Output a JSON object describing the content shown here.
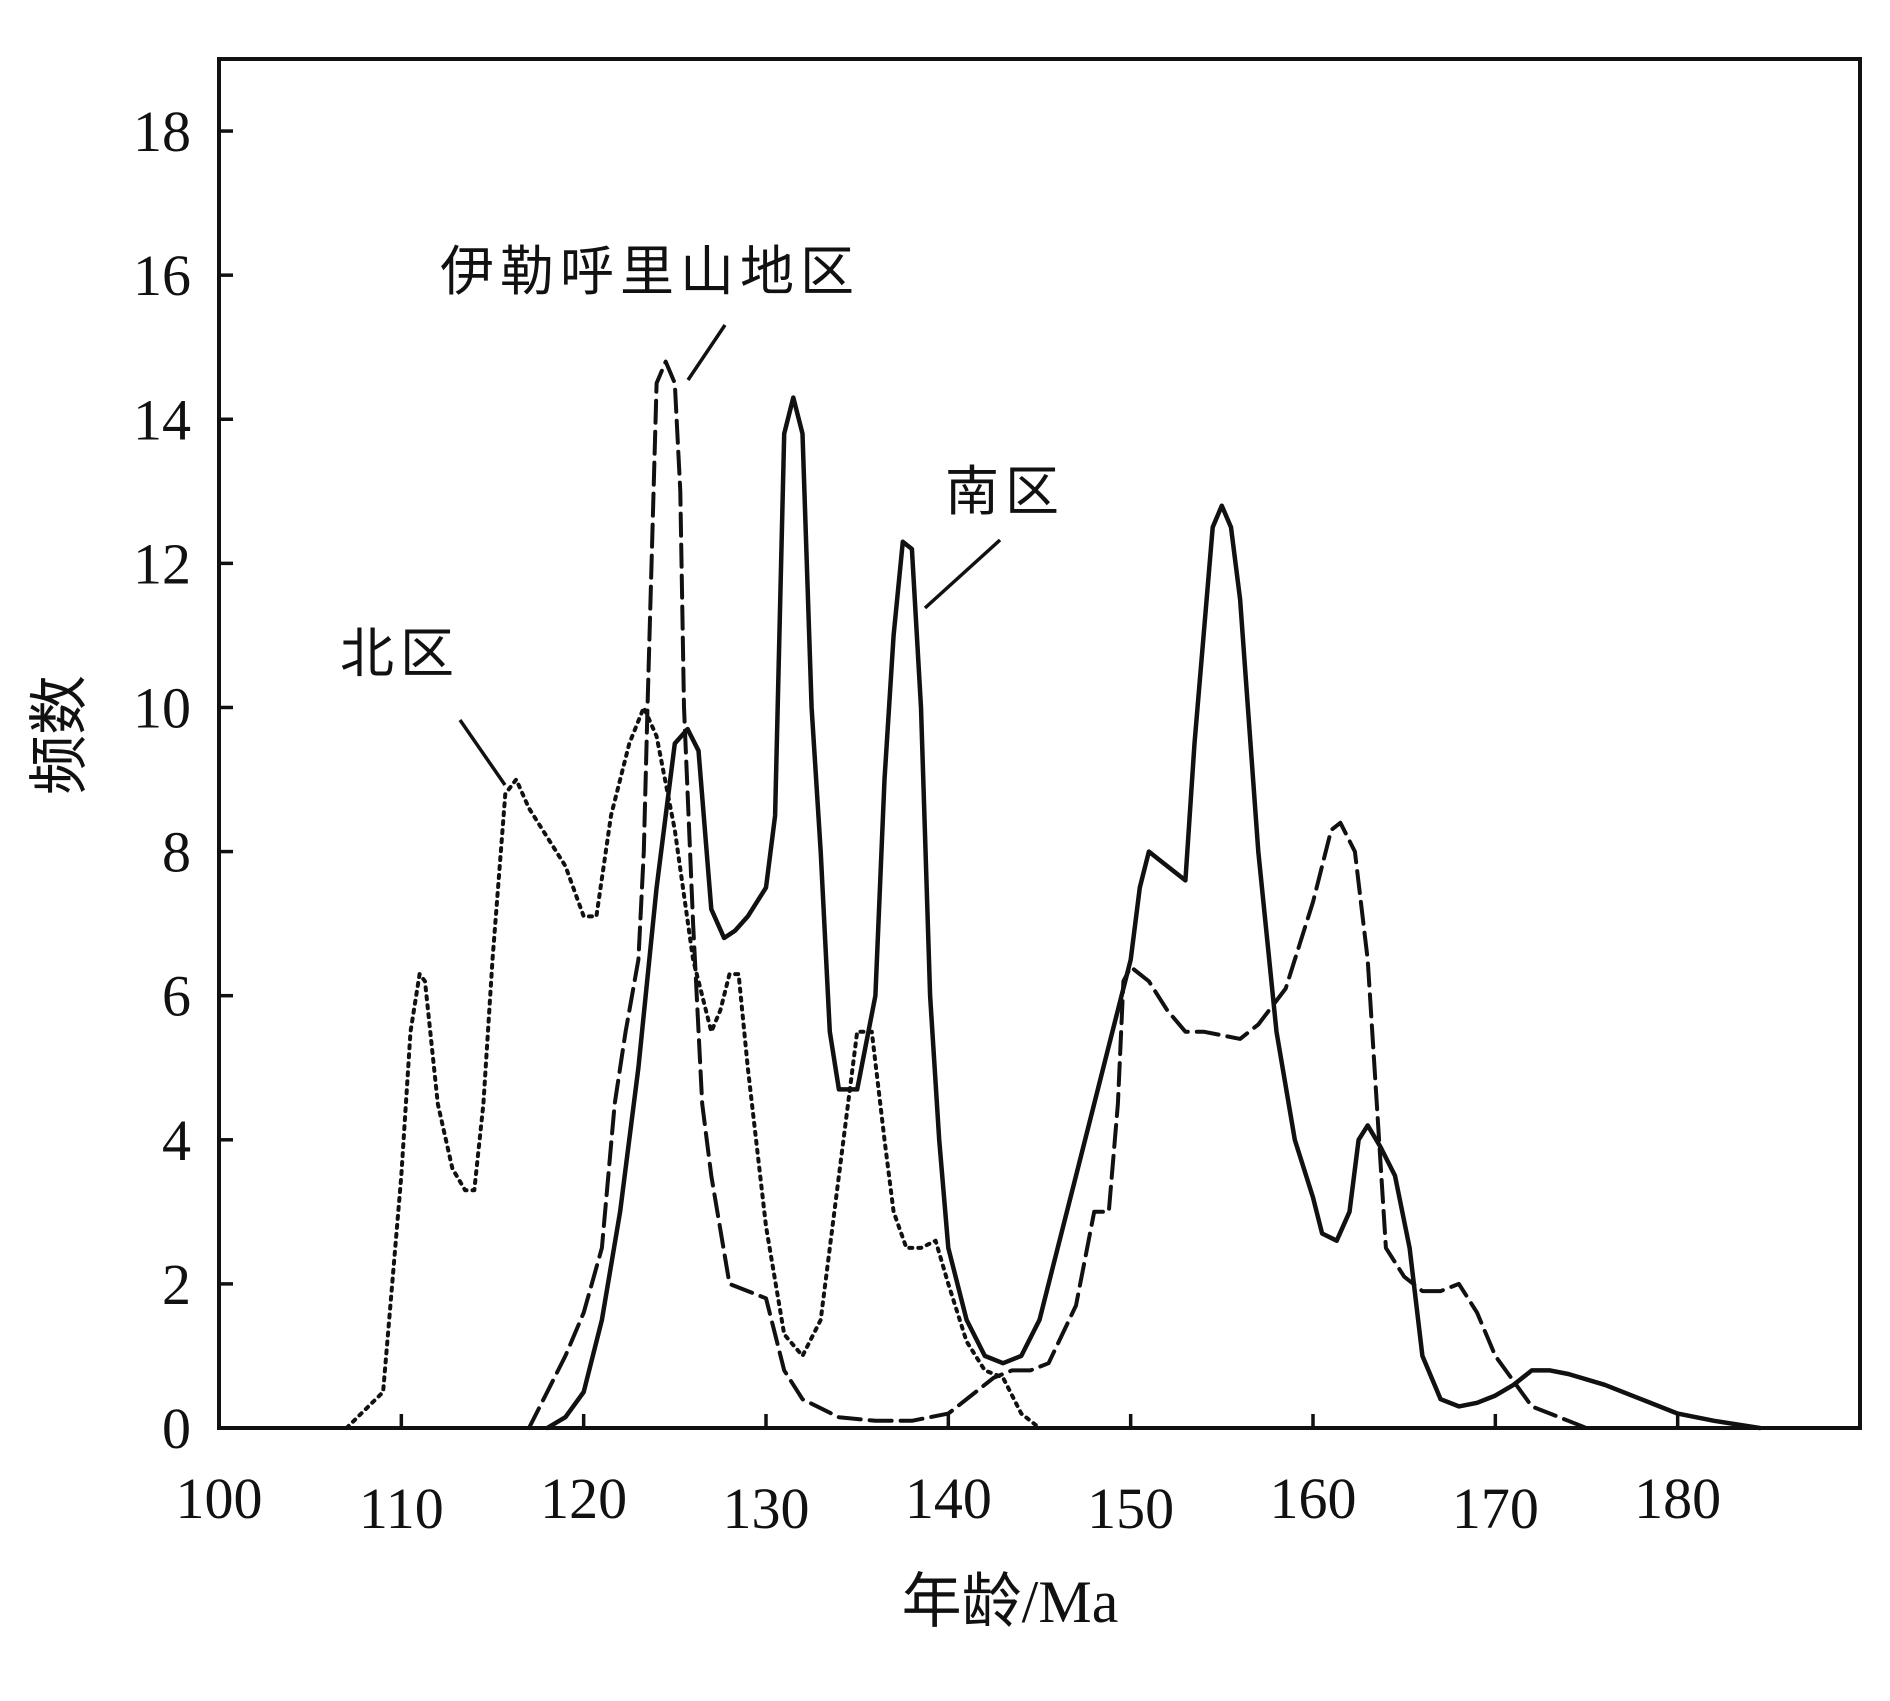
{
  "chart_data": {
    "type": "line",
    "title": "",
    "xlabel": "年龄/Ma",
    "ylabel": "频数",
    "xlim": [
      100,
      190
    ],
    "ylim": [
      0,
      19
    ],
    "x_ticks": [
      100,
      110,
      120,
      130,
      140,
      150,
      160,
      170,
      180
    ],
    "y_ticks": [
      0,
      2,
      4,
      6,
      8,
      10,
      12,
      14,
      16,
      18
    ],
    "grid": false,
    "legend": "none",
    "series": [
      {
        "name": "北区",
        "style": "dotted",
        "points": [
          [
            107,
            0
          ],
          [
            109,
            0.5
          ],
          [
            110,
            3.5
          ],
          [
            110.5,
            5.5
          ],
          [
            111,
            6.3
          ],
          [
            111.3,
            6.2
          ],
          [
            112,
            4.5
          ],
          [
            112.8,
            3.6
          ],
          [
            113.5,
            3.3
          ],
          [
            114,
            3.3
          ],
          [
            114.5,
            4.5
          ],
          [
            115,
            6.5
          ],
          [
            115.7,
            8.8
          ],
          [
            116.3,
            9.0
          ],
          [
            117,
            8.6
          ],
          [
            118,
            8.2
          ],
          [
            119,
            7.8
          ],
          [
            120,
            7.1
          ],
          [
            120.7,
            7.1
          ],
          [
            121.5,
            8.5
          ],
          [
            122.5,
            9.5
          ],
          [
            123.3,
            10.0
          ],
          [
            124,
            9.6
          ],
          [
            125,
            8.3
          ],
          [
            126,
            6.5
          ],
          [
            127,
            5.5
          ],
          [
            127.5,
            5.8
          ],
          [
            128,
            6.3
          ],
          [
            128.5,
            6.3
          ],
          [
            129,
            5.0
          ],
          [
            130,
            2.8
          ],
          [
            131,
            1.3
          ],
          [
            132,
            1.0
          ],
          [
            133,
            1.5
          ],
          [
            134,
            3.5
          ],
          [
            135,
            5.5
          ],
          [
            135.8,
            5.5
          ],
          [
            136.5,
            4.0
          ],
          [
            137,
            3.0
          ],
          [
            137.7,
            2.5
          ],
          [
            138.5,
            2.5
          ],
          [
            139.3,
            2.6
          ],
          [
            140,
            2.0
          ],
          [
            141,
            1.2
          ],
          [
            142,
            0.8
          ],
          [
            143,
            0.7
          ],
          [
            144,
            0.2
          ],
          [
            145,
            0
          ]
        ]
      },
      {
        "name": "伊勒呼里山地区",
        "style": "dashed",
        "points": [
          [
            117,
            0
          ],
          [
            118,
            0.5
          ],
          [
            119,
            1.0
          ],
          [
            120,
            1.6
          ],
          [
            121,
            2.5
          ],
          [
            121.7,
            4.5
          ],
          [
            122.3,
            5.5
          ],
          [
            123,
            6.5
          ],
          [
            123.3,
            8.0
          ],
          [
            123.5,
            10.0
          ],
          [
            124,
            14.5
          ],
          [
            124.5,
            14.8
          ],
          [
            125,
            14.5
          ],
          [
            125.3,
            13.0
          ],
          [
            125.5,
            10.0
          ],
          [
            126,
            7.0
          ],
          [
            126.5,
            4.5
          ],
          [
            127,
            3.5
          ],
          [
            128,
            2.0
          ],
          [
            129,
            1.9
          ],
          [
            130,
            1.8
          ],
          [
            130.5,
            1.3
          ],
          [
            131,
            0.8
          ],
          [
            132,
            0.4
          ],
          [
            134,
            0.15
          ],
          [
            136,
            0.1
          ],
          [
            138,
            0.1
          ],
          [
            140,
            0.2
          ],
          [
            141.5,
            0.5
          ],
          [
            142.5,
            0.7
          ],
          [
            143.5,
            0.8
          ],
          [
            144.5,
            0.8
          ],
          [
            145.5,
            0.9
          ],
          [
            147,
            1.7
          ],
          [
            148,
            3.0
          ],
          [
            148.8,
            3.0
          ],
          [
            149.3,
            4.5
          ],
          [
            149.6,
            6.2
          ],
          [
            150,
            6.4
          ],
          [
            151,
            6.2
          ],
          [
            152,
            5.8
          ],
          [
            153,
            5.5
          ],
          [
            154,
            5.5
          ],
          [
            156,
            5.4
          ],
          [
            157,
            5.6
          ],
          [
            158.5,
            6.1
          ],
          [
            160,
            7.3
          ],
          [
            161,
            8.3
          ],
          [
            161.5,
            8.4
          ],
          [
            162.3,
            8.0
          ],
          [
            163,
            6.5
          ],
          [
            163.5,
            4.5
          ],
          [
            164,
            2.5
          ],
          [
            165,
            2.1
          ],
          [
            166,
            1.9
          ],
          [
            167,
            1.9
          ],
          [
            168,
            2.0
          ],
          [
            169,
            1.6
          ],
          [
            170,
            1.0
          ],
          [
            172,
            0.3
          ],
          [
            174,
            0.1
          ],
          [
            175,
            0
          ]
        ]
      },
      {
        "name": "南区",
        "style": "solid",
        "points": [
          [
            118,
            0
          ],
          [
            119,
            0.15
          ],
          [
            120,
            0.5
          ],
          [
            121,
            1.5
          ],
          [
            122,
            3.0
          ],
          [
            123,
            5.0
          ],
          [
            124,
            7.5
          ],
          [
            125,
            9.5
          ],
          [
            125.7,
            9.7
          ],
          [
            126.3,
            9.4
          ],
          [
            127,
            7.2
          ],
          [
            127.7,
            6.8
          ],
          [
            128.3,
            6.9
          ],
          [
            129,
            7.1
          ],
          [
            130,
            7.5
          ],
          [
            130.5,
            8.5
          ],
          [
            131,
            13.8
          ],
          [
            131.5,
            14.3
          ],
          [
            132,
            13.8
          ],
          [
            132.5,
            10.0
          ],
          [
            133,
            8.0
          ],
          [
            133.5,
            5.5
          ],
          [
            134,
            4.7
          ],
          [
            135,
            4.7
          ],
          [
            136,
            6.0
          ],
          [
            136.5,
            9.0
          ],
          [
            137,
            11.0
          ],
          [
            137.5,
            12.3
          ],
          [
            138,
            12.2
          ],
          [
            138.5,
            10.0
          ],
          [
            139,
            6.0
          ],
          [
            139.5,
            4.0
          ],
          [
            140,
            2.5
          ],
          [
            141,
            1.5
          ],
          [
            142,
            1.0
          ],
          [
            143,
            0.9
          ],
          [
            144,
            1.0
          ],
          [
            145,
            1.5
          ],
          [
            146,
            2.5
          ],
          [
            147,
            3.5
          ],
          [
            148,
            4.5
          ],
          [
            149,
            5.5
          ],
          [
            150,
            6.5
          ],
          [
            150.5,
            7.5
          ],
          [
            151,
            8.0
          ],
          [
            152,
            7.8
          ],
          [
            153,
            7.6
          ],
          [
            153.5,
            9.5
          ],
          [
            154.5,
            12.5
          ],
          [
            155,
            12.8
          ],
          [
            155.5,
            12.5
          ],
          [
            156,
            11.5
          ],
          [
            157,
            8.0
          ],
          [
            158,
            5.5
          ],
          [
            159,
            4.0
          ],
          [
            160,
            3.2
          ],
          [
            160.5,
            2.7
          ],
          [
            161.3,
            2.6
          ],
          [
            162,
            3.0
          ],
          [
            162.5,
            4.0
          ],
          [
            163,
            4.2
          ],
          [
            163.7,
            3.9
          ],
          [
            164.5,
            3.5
          ],
          [
            165.3,
            2.5
          ],
          [
            166,
            1.0
          ],
          [
            167,
            0.4
          ],
          [
            168,
            0.3
          ],
          [
            169,
            0.35
          ],
          [
            170,
            0.45
          ],
          [
            171,
            0.6
          ],
          [
            172,
            0.8
          ],
          [
            173,
            0.8
          ],
          [
            174,
            0.75
          ],
          [
            176,
            0.6
          ],
          [
            178,
            0.4
          ],
          [
            180,
            0.2
          ],
          [
            182,
            0.1
          ],
          [
            184.5,
            0
          ]
        ]
      }
    ],
    "annotations": [
      {
        "text": "伊勒呼里山地区",
        "target": "伊勒呼里山地区"
      },
      {
        "text": "南区",
        "target": "南区"
      },
      {
        "text": "北区",
        "target": "北区"
      }
    ]
  }
}
